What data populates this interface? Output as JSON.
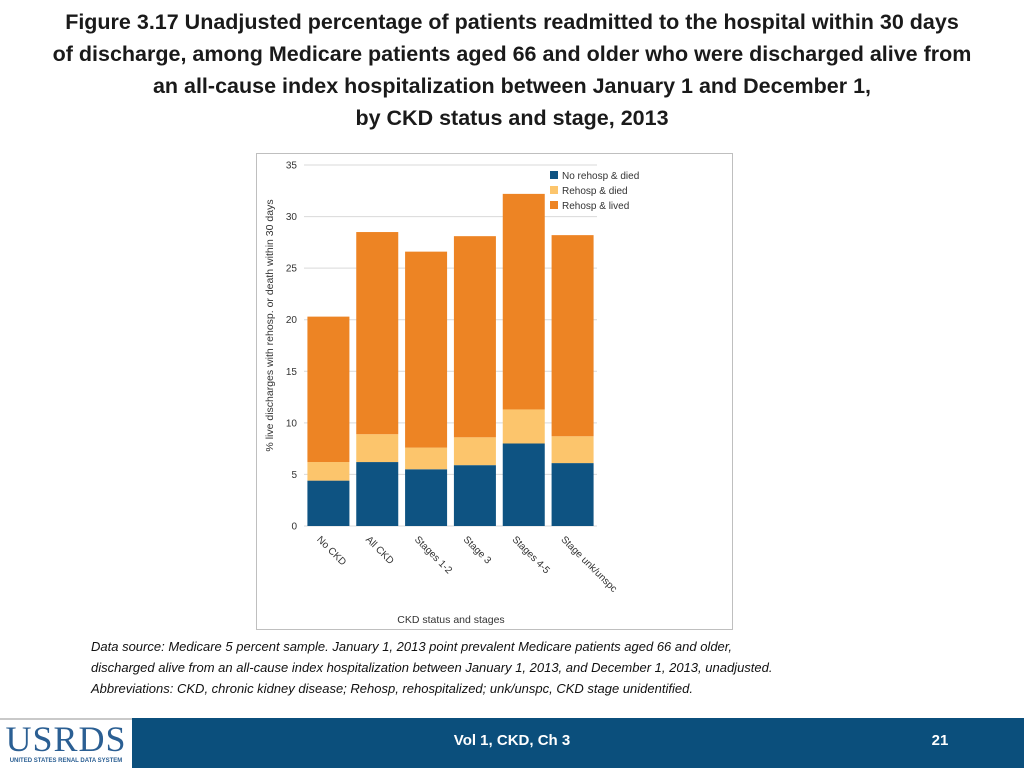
{
  "slide": {
    "title_lines": [
      "Figure 3.17  Unadjusted percentage of patients readmitted to the hospital within 30 days",
      "of discharge, among Medicare patients aged 66 and older who were discharged alive from",
      "an all-cause index hospitalization between January 1 and December 1,",
      "by CKD status and stage, 2013"
    ],
    "footnote_lines": [
      "Data source: Medicare 5 percent sample. January 1, 2013 point prevalent Medicare patients aged 66 and older,",
      "discharged alive from an all-cause index hospitalization between January 1, 2013, and December 1, 2013, unadjusted.",
      "Abbreviations: CKD, chronic kidney disease; Rehosp, rehospitalized; unk/unspc, CKD stage unidentified."
    ]
  },
  "footer": {
    "logo_text": "USRDS",
    "logo_subtext": "UNITED STATES RENAL DATA SYSTEM",
    "center_text": "Vol 1, CKD, Ch 3",
    "page_number": "21"
  },
  "colors": {
    "no_rehosp_died": "#0e5382",
    "rehosp_died": "#fcc56c",
    "rehosp_lived": "#ed8424",
    "footer_bg": "#0b4f7c"
  },
  "chart_data": {
    "type": "bar",
    "stacked": true,
    "title": "",
    "xlabel": "CKD status and stages",
    "ylabel": "% live discharges with rehosp. or death within 30 days",
    "ylim": [
      0,
      35
    ],
    "yticks": [
      0,
      5,
      10,
      15,
      20,
      25,
      30,
      35
    ],
    "grid": true,
    "legend_position": "top-right",
    "categories": [
      "No CKD",
      "All CKD",
      "Stages 1-2",
      "Stage 3",
      "Stages 4-5",
      "Stage unk/unspc"
    ],
    "series": [
      {
        "name": "No rehosp & died",
        "color": "#0e5382",
        "values": [
          4.4,
          6.2,
          5.5,
          5.9,
          8.0,
          6.1
        ]
      },
      {
        "name": "Rehosp & died",
        "color": "#fcc56c",
        "values": [
          1.8,
          2.7,
          2.1,
          2.7,
          3.3,
          2.6
        ]
      },
      {
        "name": "Rehosp & lived",
        "color": "#ed8424",
        "values": [
          14.1,
          19.6,
          19.0,
          19.5,
          20.9,
          19.5
        ]
      }
    ]
  }
}
